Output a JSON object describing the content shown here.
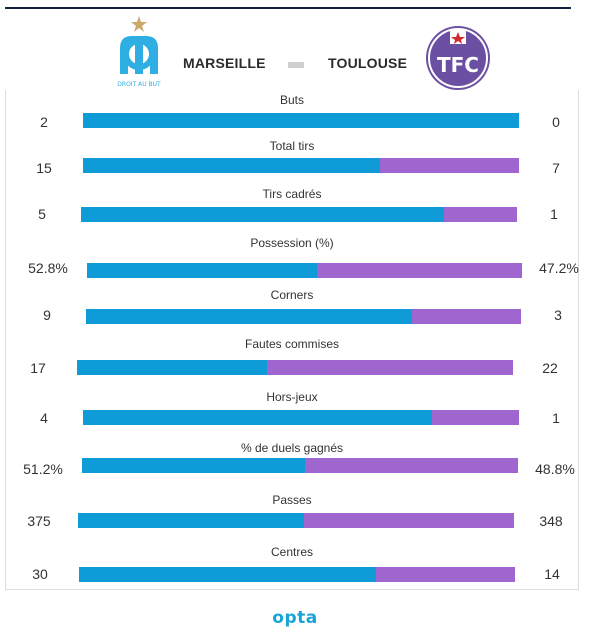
{
  "header": {
    "home_team": "MARSEILLE",
    "away_team": "TOULOUSE",
    "home_logo_text": "DROIT AU BUT",
    "away_logo_text": "TFC"
  },
  "colors": {
    "home": "#0f9ad8",
    "away": "#a066cf"
  },
  "footer": {
    "brand": "opta"
  },
  "chart_data": {
    "type": "bar",
    "categories": [
      "Buts",
      "Total tirs",
      "Tirs cadrés",
      "Possession (%)",
      "Corners",
      "Fautes commises",
      "Hors-jeux",
      "% de duels gagnés",
      "Passes",
      "Centres"
    ],
    "series": [
      {
        "name": "MARSEILLE",
        "values": [
          2,
          15,
          5,
          52.8,
          9,
          17,
          4,
          51.2,
          375,
          30
        ]
      },
      {
        "name": "TOULOUSE",
        "values": [
          0,
          7,
          1,
          47.2,
          3,
          22,
          1,
          48.8,
          348,
          14
        ]
      }
    ],
    "value_labels": {
      "home": [
        "2",
        "15",
        "5",
        "52.8%",
        "9",
        "17",
        "4",
        "51.2%",
        "375",
        "30"
      ],
      "away": [
        "0",
        "7",
        "1",
        "47.2%",
        "3",
        "22",
        "1",
        "48.8%",
        "348",
        "14"
      ]
    },
    "orientation": "horizontal-stacked-share"
  }
}
